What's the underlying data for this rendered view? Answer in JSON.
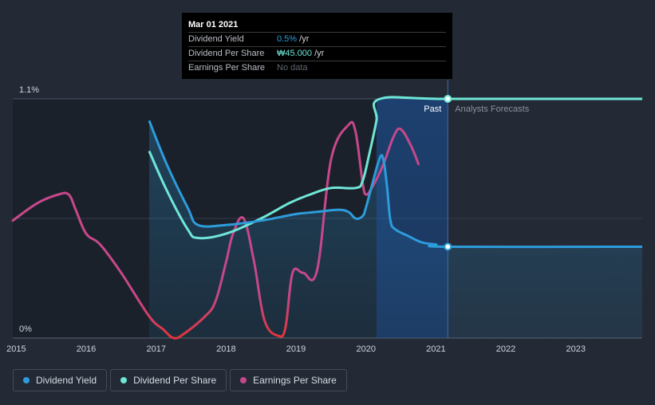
{
  "chart_data": {
    "type": "line",
    "x_axis": {
      "range": [
        2014.95,
        2023.95
      ],
      "ticks": [
        "2015",
        "2016",
        "2017",
        "2018",
        "2019",
        "2020",
        "2021",
        "2022",
        "2023"
      ]
    },
    "y_axis": {
      "range": [
        0,
        1.1
      ],
      "label_top": "1.1%",
      "label_bottom": "0%"
    },
    "past_label": "Past",
    "forecast_label": "Analysts Forecasts",
    "divider_x": 2021.17,
    "series": [
      {
        "name": "Dividend Yield",
        "color": "#2d9cdb",
        "x": [
          2016.9,
          2017.15,
          2017.45,
          2017.6,
          2018.0,
          2018.5,
          2019.0,
          2019.3,
          2019.6,
          2019.75,
          2019.85,
          2019.95,
          2020.0,
          2020.1,
          2020.2,
          2020.25,
          2020.3,
          2020.35,
          2020.42,
          2020.6,
          2020.8,
          2021.0,
          2021.17,
          2023.95
        ],
        "y": [
          1.0,
          0.8,
          0.6,
          0.52,
          0.52,
          0.54,
          0.57,
          0.58,
          0.59,
          0.58,
          0.55,
          0.56,
          0.6,
          0.72,
          0.83,
          0.82,
          0.7,
          0.54,
          0.5,
          0.47,
          0.44,
          0.43,
          0.42,
          0.42
        ]
      },
      {
        "name": "Dividend Per Share",
        "color": "#6ee7d7",
        "x": [
          2016.9,
          2017.15,
          2017.45,
          2017.6,
          2018.0,
          2018.5,
          2018.9,
          2019.2,
          2019.5,
          2019.85,
          2019.95,
          2020.05,
          2020.15,
          2020.2,
          2021.17,
          2023.95
        ],
        "y": [
          0.86,
          0.68,
          0.5,
          0.46,
          0.48,
          0.55,
          0.62,
          0.66,
          0.69,
          0.69,
          0.72,
          0.85,
          1.0,
          1.1,
          1.1,
          1.1
        ]
      },
      {
        "name": "Earnings Per Share",
        "color": "#c6488a",
        "x": [
          2014.95,
          2015.3,
          2015.6,
          2015.75,
          2015.85,
          2016.0,
          2016.2,
          2016.5,
          2016.9,
          2017.1,
          2017.25,
          2017.4,
          2017.7,
          2017.85,
          2018.0,
          2018.1,
          2018.25,
          2018.4,
          2018.55,
          2018.75,
          2018.85,
          2018.95,
          2019.1,
          2019.3,
          2019.5,
          2019.75,
          2019.85,
          2019.95,
          2020.0,
          2020.1,
          2020.25,
          2020.4,
          2020.5,
          2020.65,
          2020.75
        ],
        "y": [
          0.54,
          0.62,
          0.66,
          0.66,
          0.59,
          0.48,
          0.43,
          0.3,
          0.1,
          0.04,
          0.0,
          0.02,
          0.1,
          0.17,
          0.35,
          0.48,
          0.55,
          0.35,
          0.08,
          0.01,
          0.05,
          0.3,
          0.3,
          0.31,
          0.82,
          0.98,
          0.95,
          0.72,
          0.66,
          0.7,
          0.8,
          0.93,
          0.96,
          0.88,
          0.8
        ]
      }
    ],
    "shaded_start_x": 2016.9,
    "highlight_band": [
      2020.15,
      2021.17
    ]
  },
  "tooltip": {
    "date": "Mar 01 2021",
    "rows": [
      {
        "label": "Dividend Yield",
        "value": "0.5%",
        "unit": " /yr"
      },
      {
        "label": "Dividend Per Share",
        "value": "₩45.000",
        "unit": " /yr"
      },
      {
        "label": "Earnings Per Share",
        "value": "No data",
        "unit": ""
      }
    ]
  },
  "legend": [
    {
      "label": "Dividend Yield",
      "color": "#2d9cdb"
    },
    {
      "label": "Dividend Per Share",
      "color": "#6ee7d7"
    },
    {
      "label": "Earnings Per Share",
      "color": "#c6488a"
    }
  ]
}
